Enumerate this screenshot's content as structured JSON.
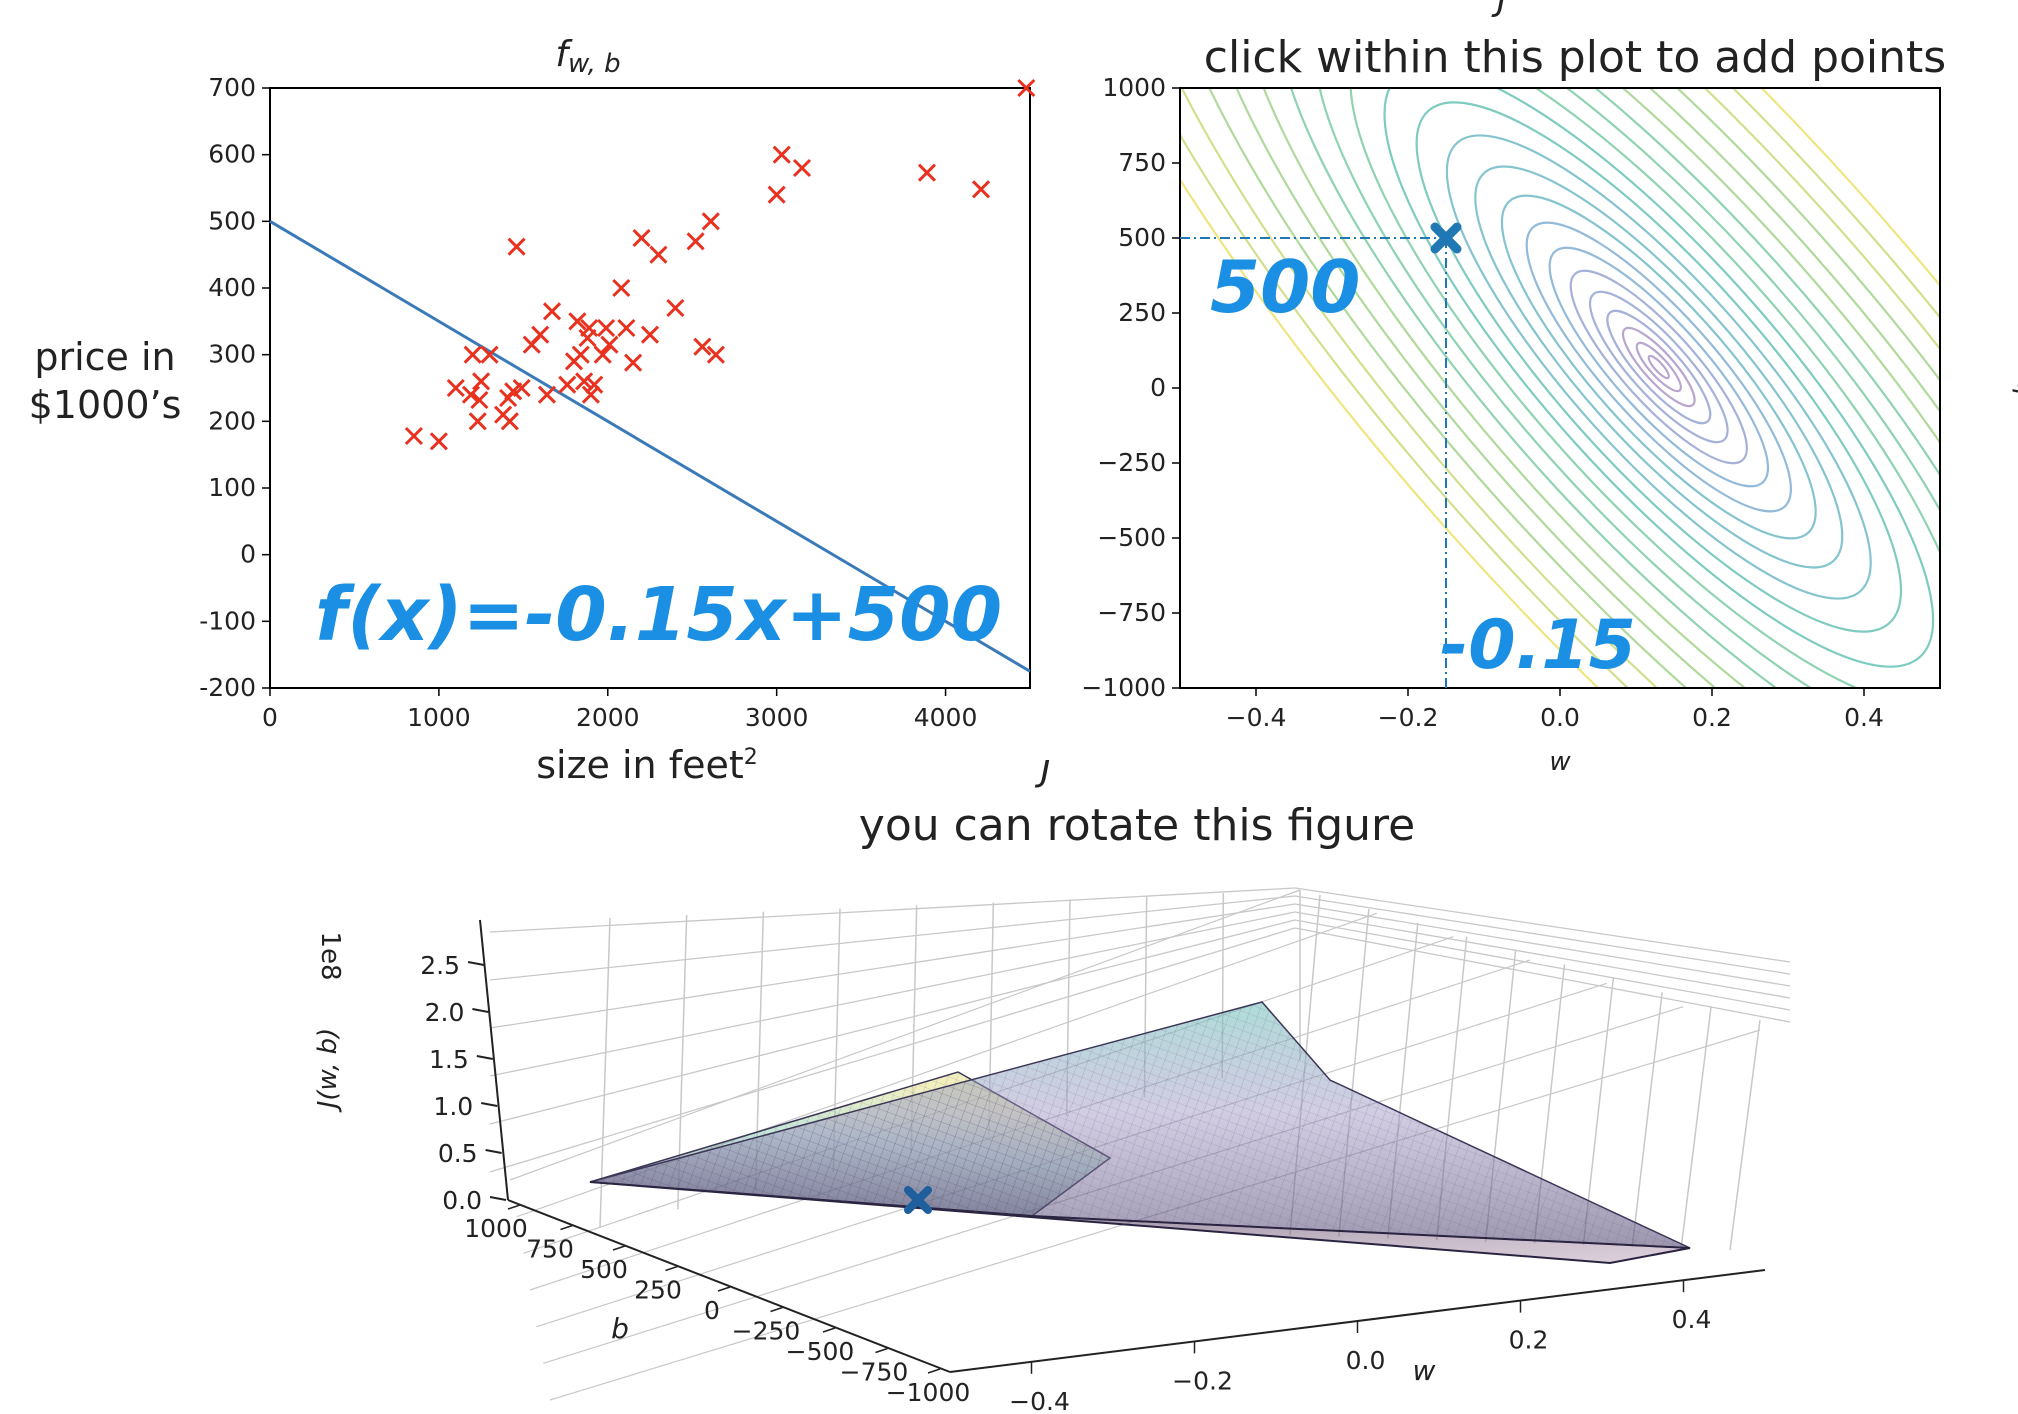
{
  "chart_data": [
    {
      "type": "scatter",
      "title": "f w, b",
      "xlabel": "size in feet²",
      "ylabel_lines": [
        "price in",
        "$1000’s"
      ],
      "xlim": [
        0,
        4500
      ],
      "ylim": [
        -200,
        700
      ],
      "xticks": [
        0,
        1000,
        2000,
        3000,
        4000
      ],
      "xtick_labels": [
        "0",
        "1000",
        "2000",
        "3000",
        "4000"
      ],
      "yticks": [
        700,
        600,
        500,
        400,
        300,
        200,
        100,
        0,
        -100,
        -200
      ],
      "ytick_labels": [
        "700",
        "600",
        "500",
        "400",
        "300",
        "200",
        "100",
        "0",
        "-100",
        "-200"
      ],
      "marker_color": "#e8311f",
      "line_color": "#3a7ab8",
      "points": [
        [
          852,
          178
        ],
        [
          1000,
          170
        ],
        [
          1100,
          250
        ],
        [
          1190,
          240
        ],
        [
          1200,
          300
        ],
        [
          1230,
          200
        ],
        [
          1240,
          232
        ],
        [
          1250,
          260
        ],
        [
          1300,
          300
        ],
        [
          1380,
          210
        ],
        [
          1410,
          235
        ],
        [
          1420,
          200
        ],
        [
          1440,
          245
        ],
        [
          1460,
          462
        ],
        [
          1490,
          250
        ],
        [
          1550,
          315
        ],
        [
          1600,
          330
        ],
        [
          1640,
          240
        ],
        [
          1670,
          365
        ],
        [
          1760,
          255
        ],
        [
          1800,
          290
        ],
        [
          1820,
          350
        ],
        [
          1840,
          300
        ],
        [
          1860,
          260
        ],
        [
          1880,
          325
        ],
        [
          1890,
          340
        ],
        [
          1900,
          240
        ],
        [
          1920,
          255
        ],
        [
          1970,
          300
        ],
        [
          1990,
          340
        ],
        [
          2010,
          315
        ],
        [
          2080,
          400
        ],
        [
          2110,
          340
        ],
        [
          2150,
          288
        ],
        [
          2200,
          475
        ],
        [
          2250,
          330
        ],
        [
          2300,
          450
        ],
        [
          2400,
          370
        ],
        [
          2520,
          470
        ],
        [
          2560,
          312
        ],
        [
          2610,
          500
        ],
        [
          2640,
          300
        ],
        [
          3000,
          540
        ],
        [
          3030,
          600
        ],
        [
          3150,
          580
        ],
        [
          3890,
          573
        ],
        [
          4210,
          548
        ],
        [
          4478,
          700
        ]
      ],
      "line": {
        "w": -0.15,
        "b": 500
      },
      "annotation": "f(x)=-0.15x+500"
    },
    {
      "type": "contour",
      "top_label": "J",
      "title": "click within this plot to add points",
      "xlabel": "w",
      "ylabel": "b",
      "xlim": [
        -0.5,
        0.5
      ],
      "ylim": [
        -1000,
        1000
      ],
      "xticks": [
        -0.4,
        -0.2,
        0.0,
        0.2,
        0.4
      ],
      "xtick_labels": [
        "−0.4",
        "−0.2",
        "0.0",
        "0.2",
        "0.4"
      ],
      "yticks": [
        1000,
        750,
        500,
        250,
        0,
        -250,
        -500,
        -750,
        -1000
      ],
      "ytick_labels": [
        "1000",
        "750",
        "500",
        "250",
        "0",
        "−250",
        "−500",
        "−750",
        "−1000"
      ],
      "minimum": {
        "w": 0.13,
        "b": 70
      },
      "selected": {
        "w": -0.15,
        "b": 500
      },
      "marker_color": "#1f77b4",
      "contour_colors": [
        "#b8a6cf",
        "#a5b1d8",
        "#94bad9",
        "#85c4cf",
        "#7ecbc0",
        "#8fd3b1",
        "#b0d99b",
        "#d3df8c",
        "#efe57e"
      ],
      "annotation_b": "500",
      "annotation_w": "-0.15"
    },
    {
      "type": "surface3d",
      "top_label": "J",
      "title": "you can rotate this figure",
      "zlabel": "J(w, b)",
      "zscale": "1e8",
      "xlabel": "w",
      "ylabel": "b",
      "zticks": [
        0.0,
        0.5,
        1.0,
        1.5,
        2.0,
        2.5
      ],
      "ztick_labels": [
        "0.0",
        "0.5",
        "1.0",
        "1.5",
        "2.0",
        "2.5"
      ],
      "wticks": [
        -0.4,
        -0.2,
        0.0,
        0.2,
        0.4
      ],
      "wtick_labels": [
        "−0.4",
        "−0.2",
        "0.0",
        "0.2",
        "0.4"
      ],
      "bticks": [
        1000,
        750,
        500,
        250,
        0,
        -250,
        -500,
        -750,
        -1000
      ],
      "btick_labels": [
        "1000",
        "750",
        "500",
        "250",
        "0",
        "−250",
        "−500",
        "−750",
        "−1000"
      ],
      "selected": {
        "w": -0.15,
        "b": 500
      }
    }
  ]
}
